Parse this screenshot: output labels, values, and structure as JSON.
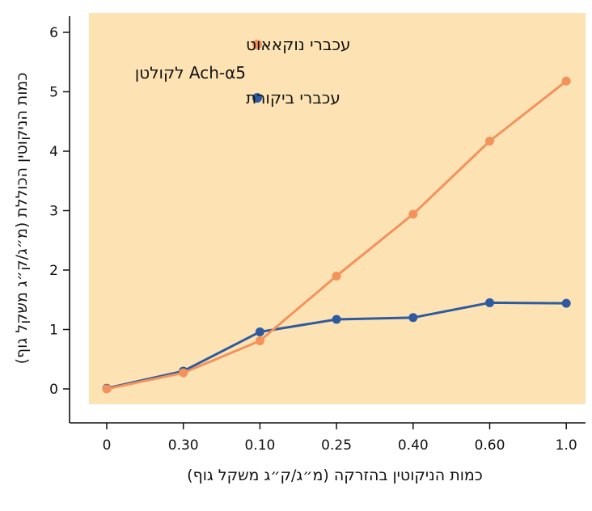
{
  "chart_data": {
    "type": "line",
    "xlabel": "כמות הניקוטין בהזרקה (מ״ג/ק״ג משקל גוף)",
    "ylabel": "כמות הניקוטין הכוללת (מ״ג/ק״ג משקל גוף)",
    "categories": [
      "0",
      "0.30",
      "0.10",
      "0.25",
      "0.40",
      "0.60",
      "1.0"
    ],
    "yticks": [
      "0",
      "1",
      "2",
      "3",
      "4",
      "5",
      "6"
    ],
    "ylim": [
      0,
      6
    ],
    "grid": false,
    "legend_position": "top-right",
    "background": "#fde3b4",
    "series": [
      {
        "name_line1": "עכברי נוקאאוט",
        "name_line2": "לקולטן Ach-α5",
        "color": "#f4925c",
        "values": [
          0.0,
          0.27,
          0.81,
          1.9,
          2.94,
          4.17,
          5.18
        ]
      },
      {
        "name_line1": "עכברי ביקורת",
        "name_line2": "",
        "color": "#2e5ba0",
        "values": [
          0.01,
          0.3,
          0.96,
          1.17,
          1.2,
          1.45,
          1.44
        ]
      }
    ]
  }
}
